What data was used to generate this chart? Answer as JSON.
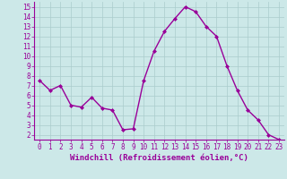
{
  "x": [
    0,
    1,
    2,
    3,
    4,
    5,
    6,
    7,
    8,
    9,
    10,
    11,
    12,
    13,
    14,
    15,
    16,
    17,
    18,
    19,
    20,
    21,
    22,
    23
  ],
  "y": [
    7.5,
    6.5,
    7.0,
    5.0,
    4.8,
    5.8,
    4.7,
    4.5,
    2.5,
    2.6,
    7.5,
    10.5,
    12.5,
    13.8,
    15.0,
    14.5,
    13.0,
    12.0,
    9.0,
    6.5,
    4.5,
    3.5,
    2.0,
    1.5
  ],
  "line_color": "#990099",
  "marker": "D",
  "marker_size": 2,
  "bg_color": "#cce8e8",
  "grid_color": "#aacccc",
  "xlabel": "Windchill (Refroidissement éolien,°C)",
  "xlim": [
    -0.5,
    23.5
  ],
  "ylim": [
    1.5,
    15.5
  ],
  "yticks": [
    2,
    3,
    4,
    5,
    6,
    7,
    8,
    9,
    10,
    11,
    12,
    13,
    14,
    15
  ],
  "xticks": [
    0,
    1,
    2,
    3,
    4,
    5,
    6,
    7,
    8,
    9,
    10,
    11,
    12,
    13,
    14,
    15,
    16,
    17,
    18,
    19,
    20,
    21,
    22,
    23
  ],
  "tick_color": "#990099",
  "tick_fontsize": 5.5,
  "xlabel_fontsize": 6.5,
  "axis_color": "#990099",
  "linewidth": 1.0
}
